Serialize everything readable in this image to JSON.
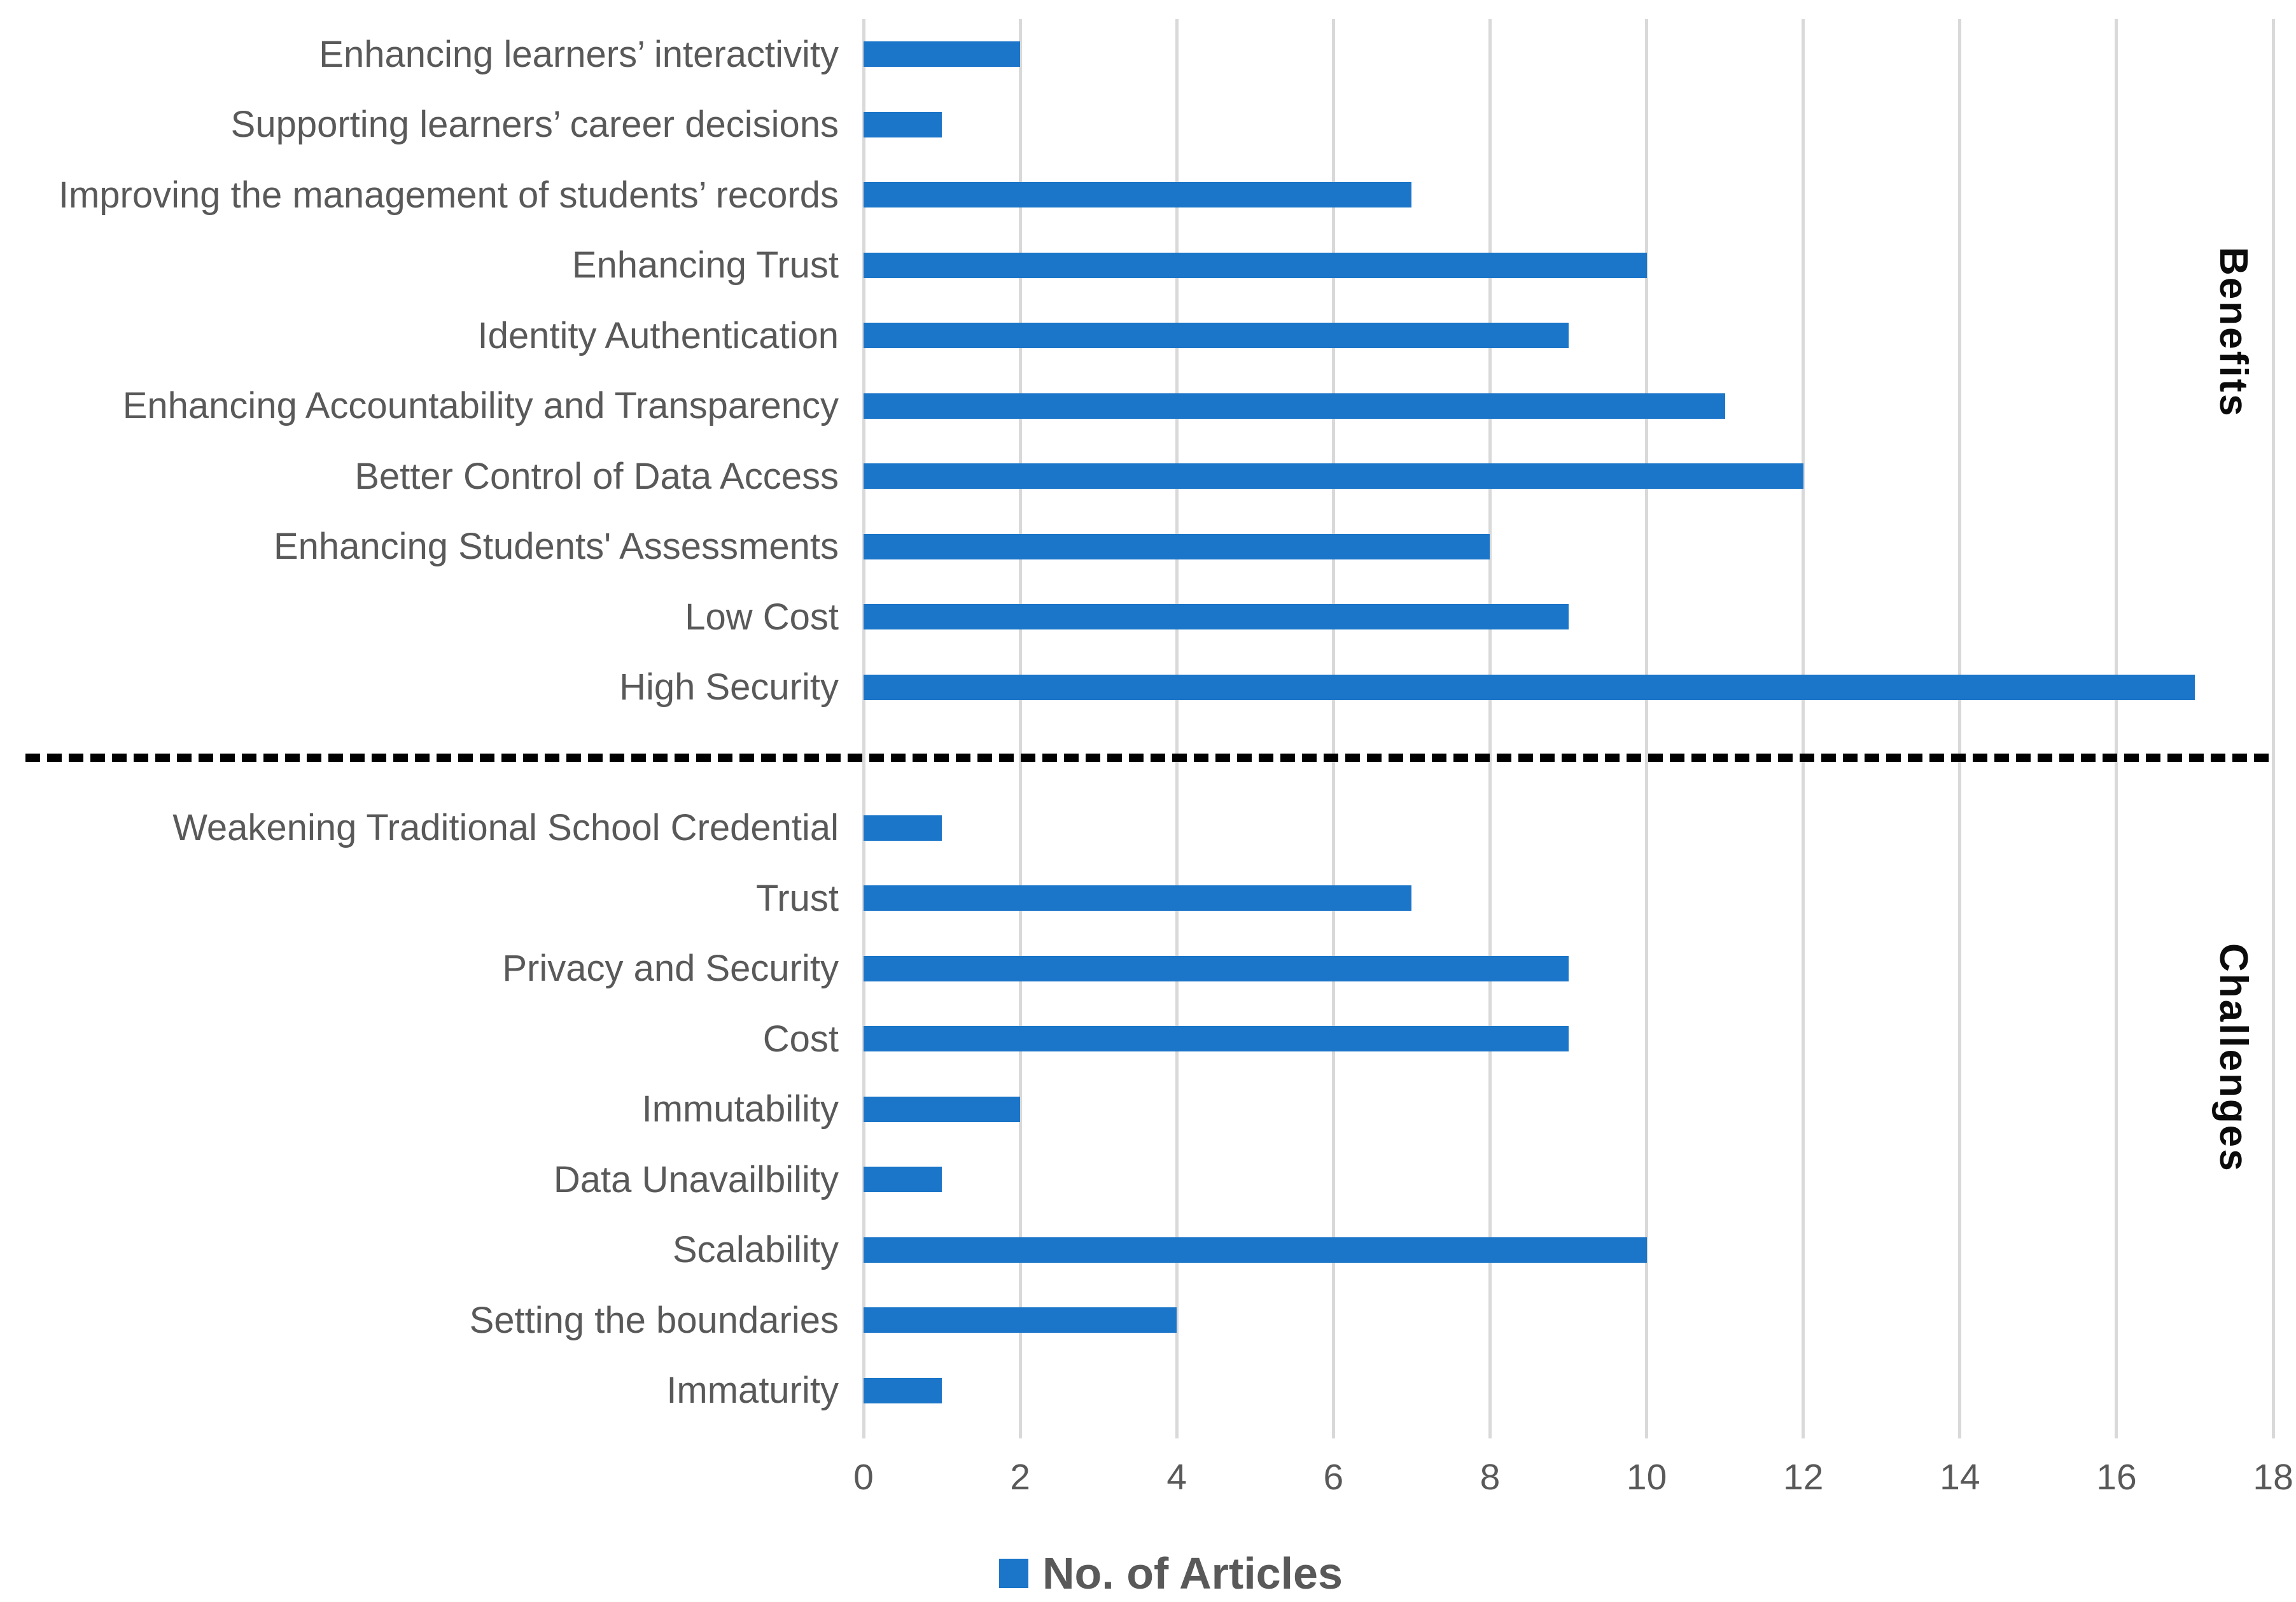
{
  "chart_data": {
    "type": "bar",
    "orientation": "horizontal",
    "title": "",
    "xlabel": "",
    "ylabel": "",
    "xlim": [
      0,
      18
    ],
    "xticks": [
      0,
      2,
      4,
      6,
      8,
      10,
      12,
      14,
      16,
      18
    ],
    "grid": "vertical-on",
    "legend_position": "bottom-center",
    "series_name": "No. of Articles",
    "groups": [
      {
        "name": "Benefits",
        "items": [
          {
            "label": "Enhancing learners’ interactivity",
            "value": 2
          },
          {
            "label": "Supporting learners’ career decisions",
            "value": 1
          },
          {
            "label": "Improving the management of students’ records",
            "value": 7
          },
          {
            "label": "Enhancing Trust",
            "value": 10
          },
          {
            "label": "Identity Authentication",
            "value": 9
          },
          {
            "label": "Enhancing Accountability and Transparency",
            "value": 11
          },
          {
            "label": "Better Control of Data Access",
            "value": 12
          },
          {
            "label": "Enhancing Students' Assessments",
            "value": 8
          },
          {
            "label": "Low Cost",
            "value": 9
          },
          {
            "label": "High Security",
            "value": 17
          }
        ]
      },
      {
        "name": "Challenges",
        "items": [
          {
            "label": "Weakening Traditional School Credential",
            "value": 1
          },
          {
            "label": "Trust",
            "value": 7
          },
          {
            "label": "Privacy and Security",
            "value": 9
          },
          {
            "label": "Cost",
            "value": 9
          },
          {
            "label": "Immutability",
            "value": 2
          },
          {
            "label": "Data Unavailbility",
            "value": 1
          },
          {
            "label": "Scalability",
            "value": 10
          },
          {
            "label": "Setting the boundaries",
            "value": 4
          },
          {
            "label": "Immaturity",
            "value": 1
          }
        ]
      }
    ]
  },
  "legend": {
    "label": "No. of Articles"
  },
  "colors": {
    "bar": "#1b75c8",
    "text_gray": "#595959",
    "gridline": "#d9d9d9",
    "separator": "#000000",
    "section_label": "#0b0b0b"
  }
}
